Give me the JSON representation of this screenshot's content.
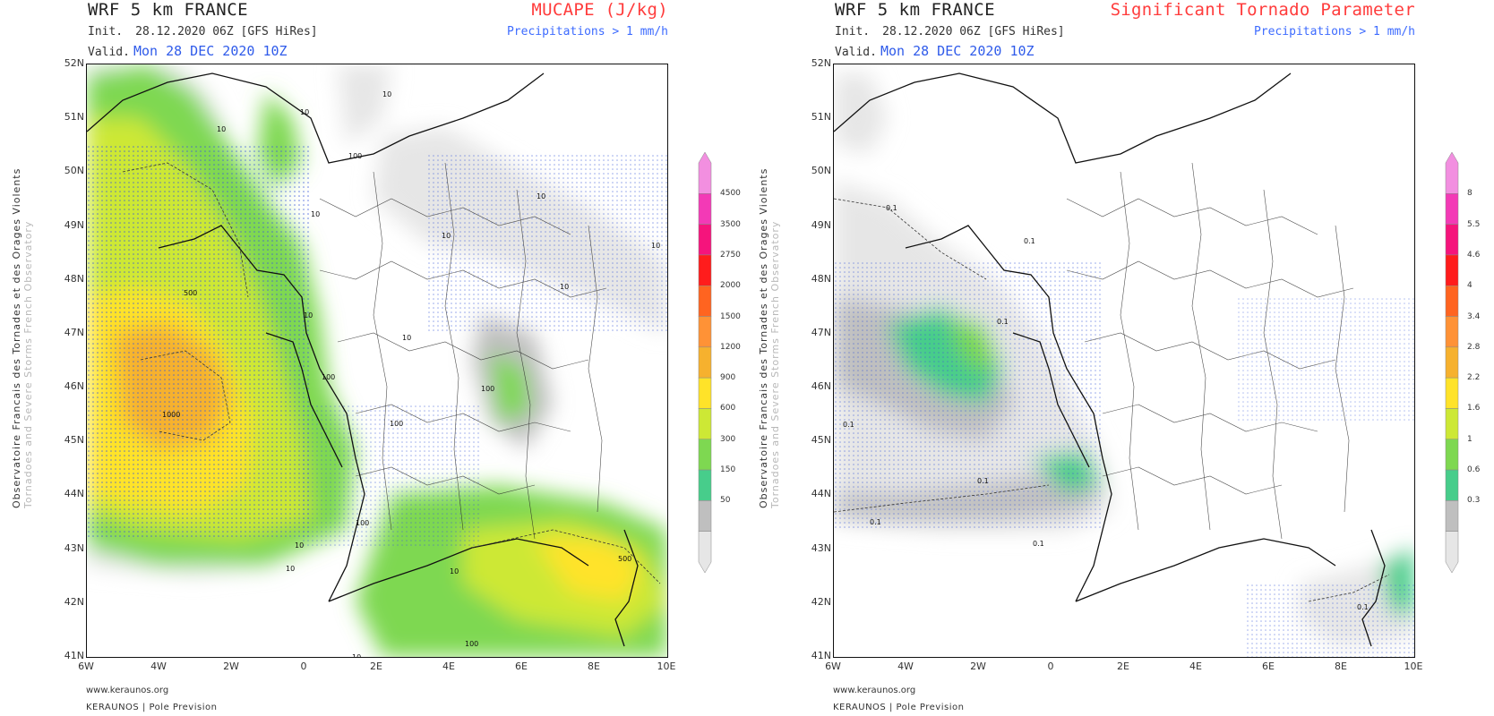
{
  "panels": [
    {
      "title": "WRF 5 km FRANCE",
      "init_label": "Init.",
      "init_value": "28.12.2020 06Z [GFS HiRes]",
      "valid_label": "Valid.",
      "valid_value": "Mon 28 DEC 2020 10Z",
      "parameter": "MUCAPE (J/kg)",
      "precip_note": "Precipitations > 1 mm/h",
      "side_label_1": "Observatoire Francais des Tornades et des Orages Violents",
      "side_label_2": "Tornadoes and Severe Storms French Observatory",
      "lat_labels": [
        "52N",
        "51N",
        "50N",
        "49N",
        "48N",
        "47N",
        "46N",
        "45N",
        "44N",
        "43N",
        "42N",
        "41N"
      ],
      "lon_labels": [
        "6W",
        "4W",
        "2W",
        "0",
        "2E",
        "4E",
        "6E",
        "8E",
        "10E"
      ],
      "legend_labels": [
        "4500",
        "3500",
        "2750",
        "2000",
        "1500",
        "1200",
        "900",
        "600",
        "300",
        "150",
        "50"
      ],
      "legend_colors": [
        "#f28fe0",
        "#f33ab6",
        "#f5147c",
        "#ff1c1c",
        "#ff6420",
        "#ff9236",
        "#f6b12e",
        "#ffe329",
        "#cde835",
        "#7ed851",
        "#47cd8b",
        "#bfbfbf",
        "#e6e6e6"
      ],
      "contour_labels": [
        "10",
        "10",
        "10",
        "100",
        "10",
        "500",
        "1000",
        "100",
        "10",
        "100",
        "10",
        "100",
        "10",
        "500",
        "100",
        "10",
        "10",
        "10",
        "10",
        "10",
        "10",
        "10",
        "100"
      ],
      "footer_url": "www.keraunos.org",
      "footer_brand": "KERAUNOS | Pole Prevision"
    },
    {
      "title": "WRF 5 km FRANCE",
      "init_label": "Init.",
      "init_value": "28.12.2020 06Z [GFS HiRes]",
      "valid_label": "Valid.",
      "valid_value": "Mon 28 DEC 2020 10Z",
      "parameter": "Significant Tornado Parameter",
      "precip_note": "Precipitations > 1 mm/h",
      "side_label_1": "Observatoire Francais des Tornades et des Orages Violents",
      "side_label_2": "Tornadoes and Severe Storms French Observatory",
      "lat_labels": [
        "52N",
        "51N",
        "50N",
        "49N",
        "48N",
        "47N",
        "46N",
        "45N",
        "44N",
        "43N",
        "42N",
        "41N"
      ],
      "lon_labels": [
        "6W",
        "4W",
        "2W",
        "0",
        "2E",
        "4E",
        "6E",
        "8E",
        "10E"
      ],
      "legend_labels": [
        "8",
        "5.5",
        "4.6",
        "4",
        "3.4",
        "2.8",
        "2.2",
        "1.6",
        "1",
        "0.6",
        "0.3"
      ],
      "legend_colors": [
        "#f28fe0",
        "#f33ab6",
        "#f5147c",
        "#ff1c1c",
        "#ff6420",
        "#ff9236",
        "#f6b12e",
        "#ffe329",
        "#cde835",
        "#7ed851",
        "#47cd8b",
        "#bfbfbf",
        "#e6e6e6"
      ],
      "contour_labels": [
        "0.1",
        "0.1",
        "0.1",
        "0.1",
        "0.1",
        "0.1",
        "0.1",
        "0.1"
      ],
      "footer_url": "www.keraunos.org",
      "footer_brand": "KERAUNOS | Pole Prevision"
    }
  ]
}
